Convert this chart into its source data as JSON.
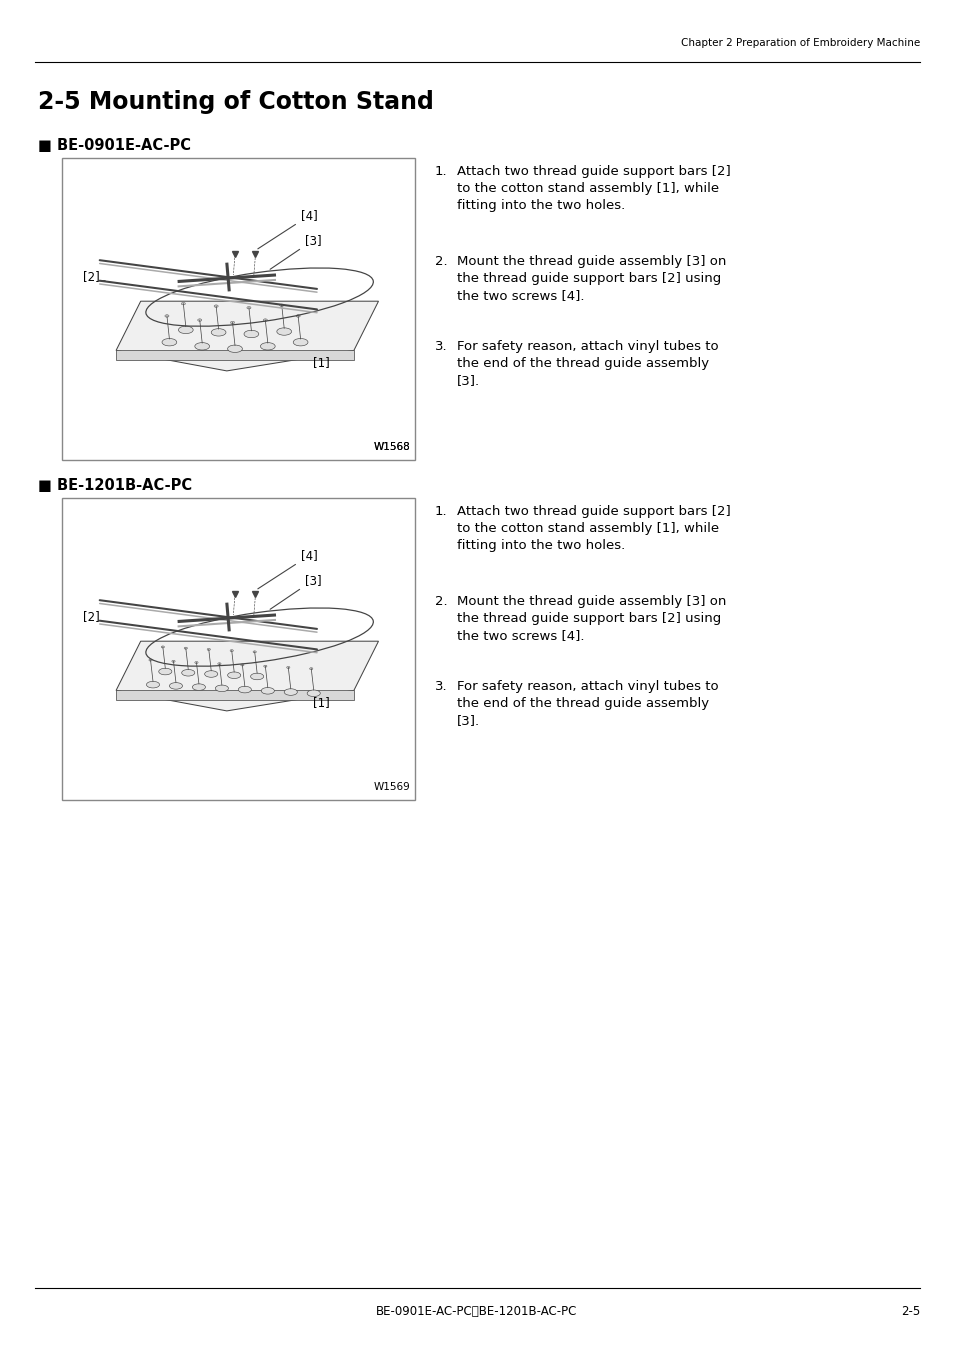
{
  "page_title": "2-5 Mounting of Cotton Stand",
  "header_text": "Chapter 2 Preparation of Embroidery Machine",
  "footer_center": "BE-0901E-AC-PC・BE-1201B-AC-PC",
  "footer_right": "2-5",
  "section1_label": "■ BE-0901E-AC-PC",
  "section2_label": "■ BE-1201B-AC-PC",
  "image1_code": "W1568",
  "image2_code": "W1569",
  "instructions": [
    "Attach two thread guide support bars [2] to the cotton stand assembly [1], while fitting into the two holes.",
    "Mount the thread guide assembly [3] on the thread guide support bars [2] using the two screws [4].",
    "For safety reason, attach vinyl tubes to the end of the thread guide assembly [3]."
  ],
  "bg_color": "#ffffff",
  "text_color": "#000000",
  "line_color": "#000000",
  "box_line_color": "#888888",
  "fig_width": 9.54,
  "fig_height": 13.51
}
